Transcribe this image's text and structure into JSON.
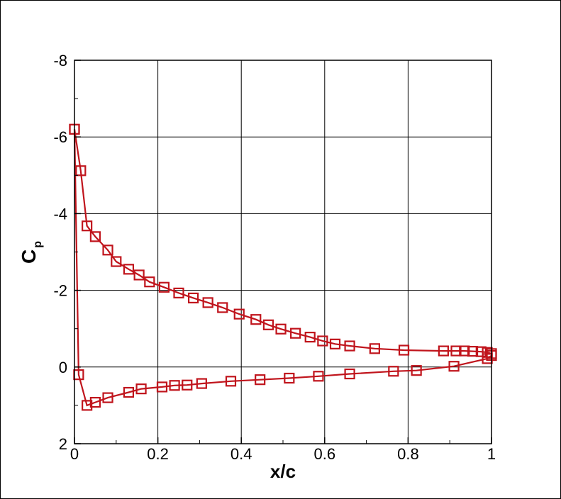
{
  "chart_data": {
    "type": "line",
    "xlabel": "x/c",
    "ylabel_main": "C",
    "ylabel_sub": "p",
    "xlim": [
      0,
      1
    ],
    "ylim": [
      2,
      -8
    ],
    "y_axis_inverted": true,
    "grid": true,
    "x_ticks": [
      0,
      0.2,
      0.4,
      0.6,
      0.8,
      1
    ],
    "x_tick_labels": [
      "0",
      "0.2",
      "0.4",
      "0.6",
      "0.8",
      "1"
    ],
    "y_ticks": [
      2,
      0,
      -2,
      -4,
      -6,
      -8
    ],
    "y_tick_labels": [
      "2",
      "0",
      "-2",
      "-4",
      "-6",
      "-8"
    ],
    "colors": {
      "series": "#c0141c",
      "grid": "#000000"
    },
    "marker": "square",
    "series": [
      {
        "x": [
          1.0,
          0.99,
          0.975,
          0.955,
          0.935,
          0.915,
          0.885,
          0.79,
          0.72,
          0.66,
          0.625,
          0.595,
          0.565,
          0.53,
          0.495,
          0.465,
          0.435,
          0.395,
          0.355,
          0.32,
          0.285,
          0.25,
          0.215,
          0.18,
          0.155,
          0.13,
          0.1,
          0.08,
          0.05,
          0.03,
          0.015,
          0.0
        ],
        "y": [
          -0.35,
          -0.38,
          -0.4,
          -0.41,
          -0.42,
          -0.42,
          -0.42,
          -0.44,
          -0.48,
          -0.55,
          -0.6,
          -0.68,
          -0.78,
          -0.88,
          -0.99,
          -1.1,
          -1.24,
          -1.38,
          -1.55,
          -1.68,
          -1.8,
          -1.93,
          -2.08,
          -2.22,
          -2.4,
          -2.55,
          -2.75,
          -3.05,
          -3.4,
          -3.68,
          -5.12,
          -6.2
        ]
      },
      {
        "x": [
          0.0,
          0.01,
          0.03,
          0.05,
          0.08,
          0.13,
          0.16,
          0.21,
          0.24,
          0.27,
          0.305,
          0.375,
          0.445,
          0.515,
          0.585,
          0.66,
          0.765,
          0.82,
          0.91,
          0.99,
          1.0
        ],
        "y": [
          -6.2,
          0.2,
          1.0,
          0.92,
          0.8,
          0.66,
          0.57,
          0.52,
          0.48,
          0.47,
          0.43,
          0.37,
          0.33,
          0.29,
          0.24,
          0.18,
          0.11,
          0.09,
          -0.02,
          -0.22,
          -0.3
        ]
      }
    ]
  }
}
